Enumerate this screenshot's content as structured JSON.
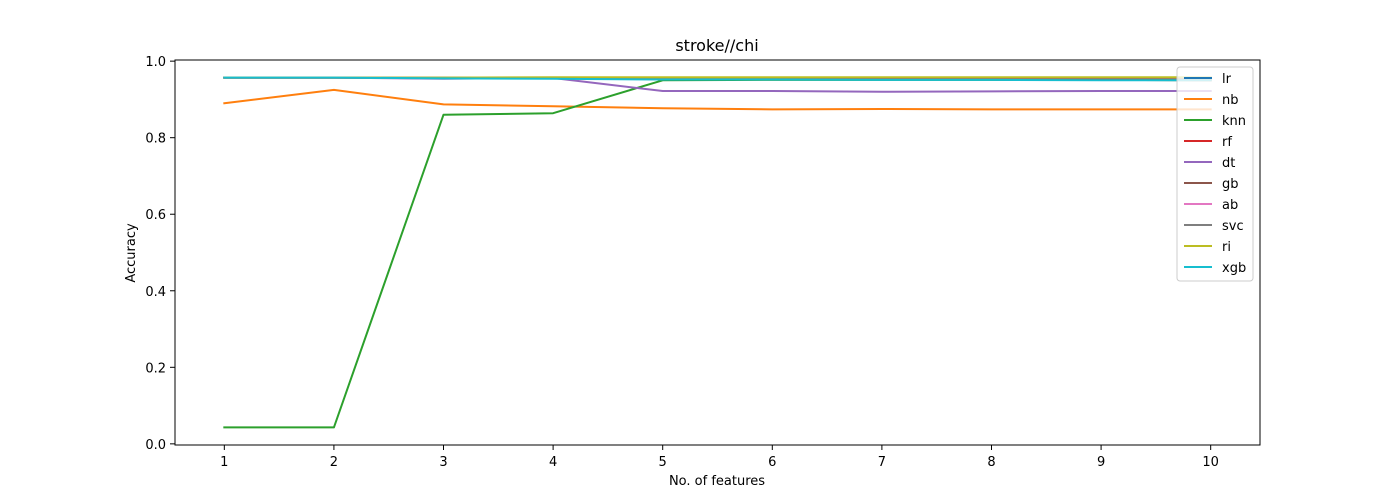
{
  "chart_data": {
    "type": "line",
    "title": "stroke//chi",
    "xlabel": "No. of features",
    "ylabel": "Accuracy",
    "x": [
      1,
      2,
      3,
      4,
      5,
      6,
      7,
      8,
      9,
      10
    ],
    "xticks": [
      "1",
      "2",
      "3",
      "4",
      "5",
      "6",
      "7",
      "8",
      "9",
      "10"
    ],
    "yticks": [
      0.0,
      0.2,
      0.4,
      0.6,
      0.8,
      1.0
    ],
    "ytick_labels": [
      "0.0",
      "0.2",
      "0.4",
      "0.6",
      "0.8",
      "1.0"
    ],
    "xlim": [
      0.55,
      10.45
    ],
    "ylim": [
      -0.003,
      1.003
    ],
    "grid": false,
    "legend_position": "top-right",
    "series": [
      {
        "name": "lr",
        "color": "#1f77b4",
        "values": [
          0.957,
          0.957,
          0.957,
          0.957,
          0.957,
          0.957,
          0.957,
          0.957,
          0.957,
          0.957
        ]
      },
      {
        "name": "nb",
        "color": "#ff7f0e",
        "values": [
          0.89,
          0.925,
          0.887,
          0.882,
          0.877,
          0.874,
          0.875,
          0.874,
          0.874,
          0.874
        ]
      },
      {
        "name": "knn",
        "color": "#2ca02c",
        "values": [
          0.043,
          0.043,
          0.86,
          0.864,
          0.95,
          0.951,
          0.951,
          0.951,
          0.951,
          0.95
        ]
      },
      {
        "name": "rf",
        "color": "#d62728",
        "values": [
          0.957,
          0.957,
          0.955,
          0.955,
          0.953,
          0.953,
          0.953,
          0.952,
          0.951,
          0.95
        ]
      },
      {
        "name": "dt",
        "color": "#9467bd",
        "values": [
          0.957,
          0.957,
          0.954,
          0.956,
          0.922,
          0.922,
          0.92,
          0.921,
          0.922,
          0.922
        ]
      },
      {
        "name": "gb",
        "color": "#8c564b",
        "values": [
          0.957,
          0.957,
          0.957,
          0.956,
          0.956,
          0.955,
          0.955,
          0.955,
          0.955,
          0.954
        ]
      },
      {
        "name": "ab",
        "color": "#e377c2",
        "values": [
          0.957,
          0.957,
          0.957,
          0.957,
          0.957,
          0.957,
          0.957,
          0.957,
          0.957,
          0.957
        ]
      },
      {
        "name": "svc",
        "color": "#7f7f7f",
        "values": [
          0.957,
          0.957,
          0.957,
          0.957,
          0.957,
          0.957,
          0.957,
          0.957,
          0.957,
          0.957
        ]
      },
      {
        "name": "ri",
        "color": "#bcbd22",
        "values": [
          0.957,
          0.957,
          0.957,
          0.958,
          0.958,
          0.958,
          0.958,
          0.958,
          0.958,
          0.958
        ]
      },
      {
        "name": "xgb",
        "color": "#17becf",
        "values": [
          0.957,
          0.957,
          0.955,
          0.954,
          0.952,
          0.952,
          0.951,
          0.951,
          0.95,
          0.95
        ]
      }
    ]
  }
}
